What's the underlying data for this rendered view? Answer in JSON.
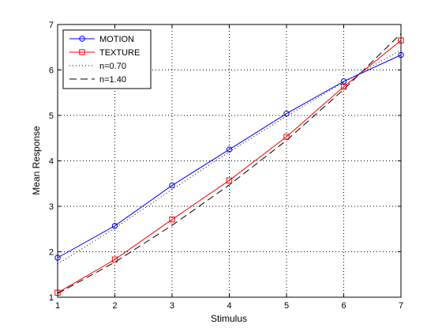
{
  "chart_data": {
    "type": "line",
    "xlabel": "Stimulus",
    "ylabel": "Mean Response",
    "xlim": [
      1,
      7
    ],
    "ylim": [
      1,
      7
    ],
    "xticks": [
      "1",
      "2",
      "3",
      "4",
      "5",
      "6",
      "7"
    ],
    "yticks": [
      "1",
      "2",
      "3",
      "4",
      "5",
      "6",
      "7"
    ],
    "grid": true,
    "grid_style": "dotted",
    "legend_position": "top-left",
    "x": [
      1,
      2,
      3,
      4,
      5,
      6,
      7
    ],
    "series": [
      {
        "name": "MOTION",
        "values": [
          1.87,
          2.57,
          3.46,
          4.25,
          5.04,
          5.75,
          6.33
        ],
        "color": "#0000ff",
        "line_style": "solid",
        "marker": "circle"
      },
      {
        "name": "TEXTURE",
        "values": [
          1.1,
          1.83,
          2.71,
          3.57,
          4.53,
          5.63,
          6.65
        ],
        "color": "#ff0000",
        "line_style": "solid",
        "marker": "square"
      },
      {
        "name": "n=0.70",
        "values": [
          1.73,
          2.52,
          3.37,
          4.2,
          4.98,
          5.73,
          6.44
        ],
        "color": "#000000",
        "line_style": "dotted",
        "marker": "none"
      },
      {
        "name": "n=1.40",
        "values": [
          1.08,
          1.77,
          2.58,
          3.47,
          4.45,
          5.57,
          6.8
        ],
        "color": "#000000",
        "line_style": "dashed",
        "marker": "none"
      }
    ]
  }
}
